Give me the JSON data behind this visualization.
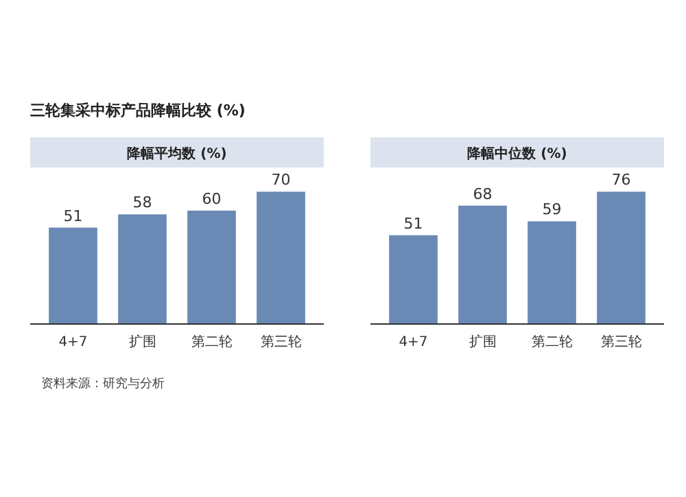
{
  "chart_data": [
    {
      "type": "bar",
      "title": "三轮集采中标产品降幅比较 (%)",
      "subtitle": "降幅平均数 (%)",
      "categories": [
        "4+7",
        "扩围",
        "第二轮",
        "第三轮"
      ],
      "values": [
        51,
        58,
        60,
        70
      ],
      "color": "#6a8ab5",
      "data_labels": true,
      "annotations": [
        "资料来源：研究与分析"
      ]
    },
    {
      "type": "bar",
      "subtitle": "降幅中位数 (%)",
      "categories": [
        "4+7",
        "扩围",
        "第二轮",
        "第三轮"
      ],
      "values": [
        51,
        68,
        59,
        76
      ],
      "color": "#6a8ab5",
      "data_labels": true
    }
  ]
}
